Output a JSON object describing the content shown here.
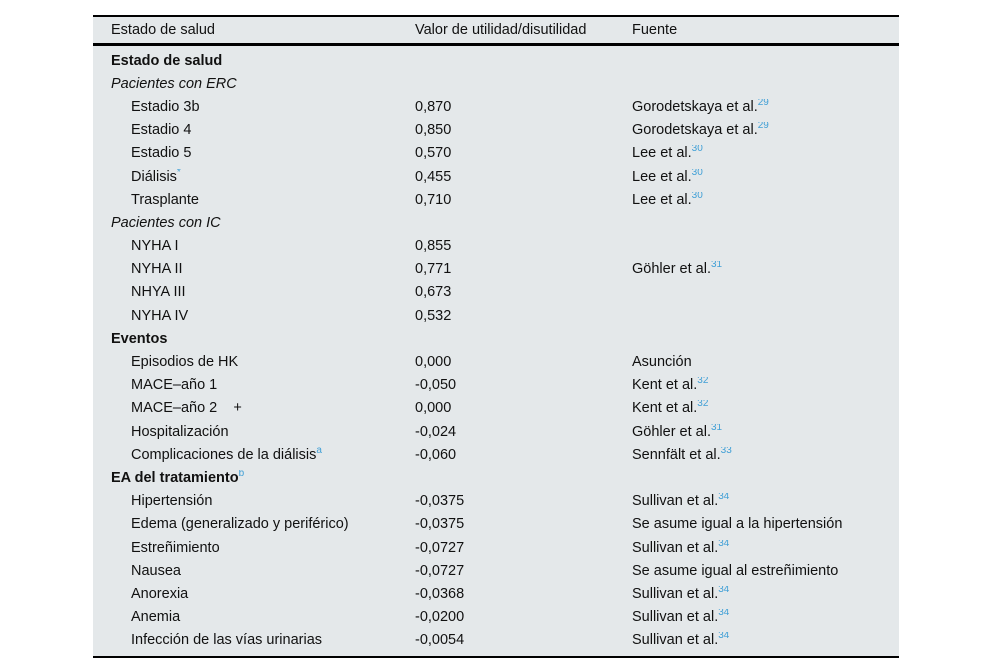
{
  "colors": {
    "table_background": "#e4e8ea",
    "rule_black": "#000000",
    "reference_blue": "#42a0d6",
    "text": "#111111"
  },
  "table": {
    "headers": [
      "Estado de salud",
      "Valor de utilidad/disutilidad",
      "Fuente"
    ],
    "rows": [
      {
        "style": "bold",
        "label": "Estado de salud",
        "label_sup": "",
        "value": "",
        "source": "",
        "source_sup": ""
      },
      {
        "style": "italic",
        "label": "Pacientes con ERC",
        "label_sup": "",
        "value": "",
        "source": "",
        "source_sup": ""
      },
      {
        "style": "item",
        "label": "Estadio 3b",
        "label_sup": "",
        "value": "0,870",
        "source": "Gorodetskaya et al.",
        "source_sup": "29"
      },
      {
        "style": "item",
        "label": "Estadio 4",
        "label_sup": "",
        "value": "0,850",
        "source": "Gorodetskaya et al.",
        "source_sup": "29"
      },
      {
        "style": "item",
        "label": "Estadio 5",
        "label_sup": "",
        "value": "0,570",
        "source": "Lee et al.",
        "source_sup": "30"
      },
      {
        "style": "item",
        "label": "Diálisis",
        "label_sup": "*",
        "value": "0,455",
        "source": "Lee et al.",
        "source_sup": "30"
      },
      {
        "style": "item",
        "label": "Trasplante",
        "label_sup": "",
        "value": "0,710",
        "source": "Lee et al.",
        "source_sup": "30"
      },
      {
        "style": "italic",
        "label": "Pacientes con IC",
        "label_sup": "",
        "value": "",
        "source": "",
        "source_sup": ""
      },
      {
        "style": "item",
        "label": "NYHA I",
        "label_sup": "",
        "value": "0,855",
        "source": "",
        "source_sup": ""
      },
      {
        "style": "item",
        "label": "NYHA II",
        "label_sup": "",
        "value": "0,771",
        "source": "Göhler et al.",
        "source_sup": "31"
      },
      {
        "style": "item",
        "label": "NHYA III",
        "label_sup": "",
        "value": "0,673",
        "source": "",
        "source_sup": ""
      },
      {
        "style": "item",
        "label": "NYHA IV",
        "label_sup": "",
        "value": "0,532",
        "source": "",
        "source_sup": ""
      },
      {
        "style": "bold",
        "label": "Eventos",
        "label_sup": "",
        "value": "",
        "source": "",
        "source_sup": ""
      },
      {
        "style": "item",
        "label": "Episodios de HK",
        "label_sup": "",
        "value": "0,000",
        "source": "Asunción",
        "source_sup": ""
      },
      {
        "style": "item",
        "label": "MACE–año 1",
        "label_sup": "",
        "value": "-0,050",
        "source": "Kent et al.",
        "source_sup": "32"
      },
      {
        "style": "item",
        "label": "MACE–año 2    +",
        "label_sup": "",
        "value": "0,000",
        "source": "Kent et al.",
        "source_sup": "32"
      },
      {
        "style": "item",
        "label": "Hospitalización",
        "label_sup": "",
        "value": "-0,024",
        "source": "Göhler et al.",
        "source_sup": "31"
      },
      {
        "style": "item",
        "label": "Complicaciones de la diálisis",
        "label_sup": "a",
        "value": "-0,060",
        "source": "Sennfält et al.",
        "source_sup": "33"
      },
      {
        "style": "bold",
        "label": "EA del tratamiento",
        "label_sup": "b",
        "value": "",
        "source": "",
        "source_sup": ""
      },
      {
        "style": "item",
        "label": "Hipertensión",
        "label_sup": "",
        "value": "-0,0375",
        "source": "Sullivan et al.",
        "source_sup": "34"
      },
      {
        "style": "item",
        "label": "Edema (generalizado y periférico)",
        "label_sup": "",
        "value": "-0,0375",
        "source": "Se asume igual a la hipertensión",
        "source_sup": ""
      },
      {
        "style": "item",
        "label": "Estreñimiento",
        "label_sup": "",
        "value": "-0,0727",
        "source": "Sullivan et al.",
        "source_sup": "34"
      },
      {
        "style": "item",
        "label": "Nausea",
        "label_sup": "",
        "value": "-0,0727",
        "source": "Se asume igual al estreñimiento",
        "source_sup": ""
      },
      {
        "style": "item",
        "label": "Anorexia",
        "label_sup": "",
        "value": "-0,0368",
        "source": "Sullivan et al.",
        "source_sup": "34"
      },
      {
        "style": "item",
        "label": "Anemia",
        "label_sup": "",
        "value": "-0,0200",
        "source": "Sullivan et al.",
        "source_sup": "34"
      },
      {
        "style": "item",
        "label": "Infección de las vías urinarias",
        "label_sup": "",
        "value": "-0,0054",
        "source": "Sullivan et al.",
        "source_sup": "34"
      }
    ]
  }
}
